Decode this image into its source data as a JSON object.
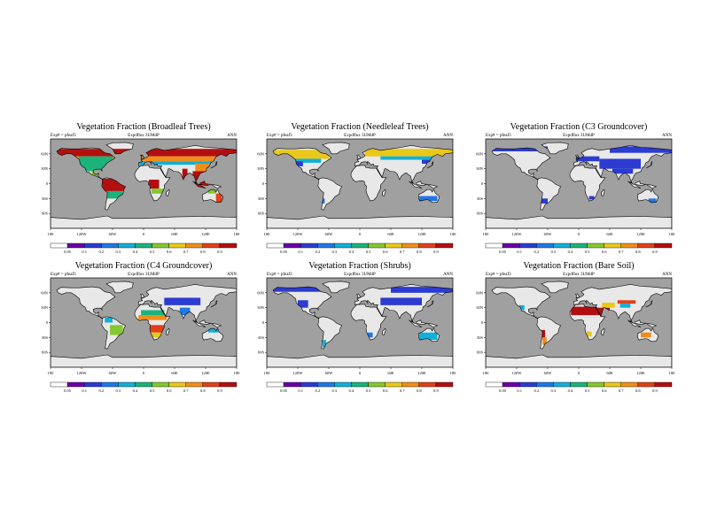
{
  "chart_data": [
    {
      "type": "heatmap",
      "title": "Vegetation Fraction (Broadleaf Trees)",
      "left_label": "Exp# = pfeaf3",
      "center_label": "Expdflux 3UMdP",
      "right_label": "ANN",
      "lon_ticks": [
        "180",
        "120W",
        "60W",
        "0",
        "60E",
        "120E",
        "180"
      ],
      "lat_ticks": [
        "60N",
        "30N",
        "0",
        "30S",
        "60S"
      ],
      "colorbar_ticks": [
        "0.05",
        "0.1",
        "0.2",
        "0.3",
        "0.4",
        "0.5",
        "0.6",
        "0.7",
        "0.8",
        "0.9"
      ],
      "regions": [
        {
          "lon": [
            -180,
            180
          ],
          "lat": [
            55,
            70
          ],
          "value": 0.9
        },
        {
          "lon": [
            -180,
            180
          ],
          "lat": [
            45,
            55
          ],
          "value": 0.7
        },
        {
          "lon": [
            -180,
            180
          ],
          "lat": [
            38,
            45
          ],
          "value": 0.3
        },
        {
          "lon": [
            -125,
            -60
          ],
          "lat": [
            25,
            55
          ],
          "value": 0.45
        },
        {
          "lon": [
            -100,
            -75
          ],
          "lat": [
            15,
            25
          ],
          "value": 0.5
        },
        {
          "lon": [
            -80,
            -35
          ],
          "lat": [
            -15,
            10
          ],
          "value": 0.9
        },
        {
          "lon": [
            -75,
            -40
          ],
          "lat": [
            -30,
            -15
          ],
          "value": 0.45
        },
        {
          "lon": [
            10,
            30
          ],
          "lat": [
            -10,
            8
          ],
          "value": 0.9
        },
        {
          "lon": [
            15,
            40
          ],
          "lat": [
            -20,
            -10
          ],
          "value": 0.5
        },
        {
          "lon": [
            75,
            85
          ],
          "lat": [
            10,
            30
          ],
          "value": 0.95
        },
        {
          "lon": [
            95,
            125
          ],
          "lat": [
            -10,
            25
          ],
          "value": 0.9
        },
        {
          "lon": [
            100,
            140
          ],
          "lat": [
            25,
            40
          ],
          "value": 0.75
        },
        {
          "lon": [
            140,
            152
          ],
          "lat": [
            -40,
            -20
          ],
          "value": 0.8
        },
        {
          "lon": [
            125,
            140
          ],
          "lat": [
            -20,
            -12
          ],
          "value": 0.5
        }
      ]
    },
    {
      "type": "heatmap",
      "title": "Vegetation Fraction (Needleleaf Trees)",
      "left_label": "Exp# = pfeaf3",
      "center_label": "Expdflux 3UMdP",
      "right_label": "ANN",
      "lon_ticks": [
        "180",
        "120W",
        "60W",
        "0",
        "60E",
        "120E",
        "180"
      ],
      "lat_ticks": [
        "60N",
        "30N",
        "0",
        "30S",
        "60S"
      ],
      "colorbar_ticks": [
        "0.05",
        "0.1",
        "0.2",
        "0.3",
        "0.4",
        "0.5",
        "0.6",
        "0.7",
        "0.8",
        "0.9"
      ],
      "regions": [
        {
          "lon": [
            -170,
            -60
          ],
          "lat": [
            50,
            68
          ],
          "value": 0.6
        },
        {
          "lon": [
            -150,
            -75
          ],
          "lat": [
            42,
            50
          ],
          "value": 0.35
        },
        {
          "lon": [
            10,
            180
          ],
          "lat": [
            55,
            70
          ],
          "value": 0.65
        },
        {
          "lon": [
            40,
            150
          ],
          "lat": [
            48,
            55
          ],
          "value": 0.3
        },
        {
          "lon": [
            120,
            150
          ],
          "lat": [
            40,
            48
          ],
          "value": 0.15
        },
        {
          "lon": [
            -125,
            -110
          ],
          "lat": [
            35,
            45
          ],
          "value": 0.15
        },
        {
          "lon": [
            115,
            150
          ],
          "lat": [
            -35,
            -25
          ],
          "value": 0.25
        },
        {
          "lon": [
            -75,
            -68
          ],
          "lat": [
            -40,
            -30
          ],
          "value": 0.2
        }
      ]
    },
    {
      "type": "heatmap",
      "title": "Vegetation Fraction (C3 Groundcover)",
      "left_label": "Exp# = pfeaf3",
      "center_label": "Expdflux 3UMdP",
      "right_label": "ANN",
      "lon_ticks": [
        "180",
        "120W",
        "60W",
        "0",
        "60E",
        "120E",
        "180"
      ],
      "lat_ticks": [
        "60N",
        "30N",
        "0",
        "30S",
        "60S"
      ],
      "colorbar_ticks": [
        "0.05",
        "0.1",
        "0.2",
        "0.3",
        "0.4",
        "0.5",
        "0.6",
        "0.7",
        "0.8",
        "0.9"
      ],
      "regions": [
        {
          "lon": [
            -180,
            -60
          ],
          "lat": [
            65,
            75
          ],
          "value": 0.1
        },
        {
          "lon": [
            60,
            180
          ],
          "lat": [
            62,
            75
          ],
          "value": 0.1
        },
        {
          "lon": [
            -5,
            40
          ],
          "lat": [
            45,
            55
          ],
          "value": 0.1
        },
        {
          "lon": [
            40,
            120
          ],
          "lat": [
            30,
            50
          ],
          "value": 0.15
        },
        {
          "lon": [
            65,
            105
          ],
          "lat": [
            20,
            30
          ],
          "value": 0.1
        },
        {
          "lon": [
            -75,
            -60
          ],
          "lat": [
            -40,
            -30
          ],
          "value": 0.15
        },
        {
          "lon": [
            135,
            150
          ],
          "lat": [
            -40,
            -30
          ],
          "value": 0.2
        },
        {
          "lon": [
            20,
            30
          ],
          "lat": [
            -32,
            -25
          ],
          "value": 0.15
        }
      ]
    },
    {
      "type": "heatmap",
      "title": "Vegetation Fraction (C4 Groundcover)",
      "left_label": "Exp# = pfeaf3",
      "center_label": "Expdflux 3UMdP",
      "right_label": "ANN",
      "lon_ticks": [
        "180",
        "120W",
        "60W",
        "0",
        "60E",
        "120E",
        "180"
      ],
      "lat_ticks": [
        "60N",
        "30N",
        "0",
        "30S",
        "60S"
      ],
      "colorbar_ticks": [
        "0.05",
        "0.1",
        "0.2",
        "0.3",
        "0.4",
        "0.5",
        "0.6",
        "0.7",
        "0.8",
        "0.9"
      ],
      "regions": [
        {
          "lon": [
            -10,
            45
          ],
          "lat": [
            5,
            15
          ],
          "value": 0.75
        },
        {
          "lon": [
            -5,
            40
          ],
          "lat": [
            15,
            25
          ],
          "value": 0.4
        },
        {
          "lon": [
            10,
            40
          ],
          "lat": [
            -20,
            -5
          ],
          "value": 0.85
        },
        {
          "lon": [
            15,
            35
          ],
          "lat": [
            -30,
            -20
          ],
          "value": 0.6
        },
        {
          "lon": [
            -65,
            -40
          ],
          "lat": [
            -25,
            -5
          ],
          "value": 0.5
        },
        {
          "lon": [
            -75,
            -60
          ],
          "lat": [
            0,
            10
          ],
          "value": 0.3
        },
        {
          "lon": [
            70,
            90
          ],
          "lat": [
            15,
            30
          ],
          "value": 0.2
        },
        {
          "lon": [
            125,
            145
          ],
          "lat": [
            -20,
            -12
          ],
          "value": 0.3
        },
        {
          "lon": [
            40,
            110
          ],
          "lat": [
            35,
            50
          ],
          "value": 0.1
        }
      ]
    },
    {
      "type": "heatmap",
      "title": "Vegetation Fraction (Shrubs)",
      "left_label": "Exp# = pfeaf3",
      "center_label": "Expdflux 3UMdP",
      "right_label": "ANN",
      "lon_ticks": [
        "180",
        "120W",
        "60W",
        "0",
        "60E",
        "120E",
        "180"
      ],
      "lat_ticks": [
        "60N",
        "30N",
        "0",
        "30S",
        "60S"
      ],
      "colorbar_ticks": [
        "0.05",
        "0.1",
        "0.2",
        "0.3",
        "0.4",
        "0.5",
        "0.6",
        "0.7",
        "0.8",
        "0.9"
      ],
      "regions": [
        {
          "lon": [
            -170,
            -60
          ],
          "lat": [
            62,
            72
          ],
          "value": 0.1
        },
        {
          "lon": [
            60,
            180
          ],
          "lat": [
            60,
            72
          ],
          "value": 0.1
        },
        {
          "lon": [
            40,
            120
          ],
          "lat": [
            35,
            50
          ],
          "value": 0.15
        },
        {
          "lon": [
            -120,
            -100
          ],
          "lat": [
            30,
            45
          ],
          "value": 0.15
        },
        {
          "lon": [
            115,
            150
          ],
          "lat": [
            -35,
            -20
          ],
          "value": 0.35
        },
        {
          "lon": [
            -72,
            -65
          ],
          "lat": [
            -50,
            -35
          ],
          "value": 0.3
        },
        {
          "lon": [
            15,
            25
          ],
          "lat": [
            -30,
            -20
          ],
          "value": 0.2
        }
      ]
    },
    {
      "type": "heatmap",
      "title": "Vegetation Fraction (Bare Soil)",
      "left_label": "Exp# = pfeaf3",
      "center_label": "Expdflux 3UMdP",
      "right_label": "ANN",
      "lon_ticks": [
        "180",
        "120W",
        "60W",
        "0",
        "60E",
        "120E",
        "180"
      ],
      "lat_ticks": [
        "60N",
        "30N",
        "0",
        "30S",
        "60S"
      ],
      "colorbar_ticks": [
        "0.05",
        "0.1",
        "0.2",
        "0.3",
        "0.4",
        "0.5",
        "0.6",
        "0.7",
        "0.8",
        "0.9"
      ],
      "regions": [
        {
          "lon": [
            -15,
            35
          ],
          "lat": [
            15,
            32
          ],
          "value": 0.95
        },
        {
          "lon": [
            35,
            60
          ],
          "lat": [
            15,
            30
          ],
          "value": 0.9
        },
        {
          "lon": [
            45,
            70
          ],
          "lat": [
            30,
            40
          ],
          "value": 0.6
        },
        {
          "lon": [
            75,
            110
          ],
          "lat": [
            38,
            45
          ],
          "value": 0.85
        },
        {
          "lon": [
            80,
            100
          ],
          "lat": [
            30,
            38
          ],
          "value": 0.3
        },
        {
          "lon": [
            -75,
            -65
          ],
          "lat": [
            -30,
            -15
          ],
          "value": 0.9
        },
        {
          "lon": [
            -70,
            -62
          ],
          "lat": [
            -45,
            -30
          ],
          "value": 0.7
        },
        {
          "lon": [
            15,
            25
          ],
          "lat": [
            -28,
            -18
          ],
          "value": 0.6
        },
        {
          "lon": [
            120,
            140
          ],
          "lat": [
            -30,
            -20
          ],
          "value": 0.75
        },
        {
          "lon": [
            -115,
            -105
          ],
          "lat": [
            25,
            35
          ],
          "value": 0.3
        }
      ]
    }
  ],
  "colors": {
    "ocean": "#a0a0a0",
    "land": "#e8e8e8",
    "coast": "#000000",
    "palette": [
      "#ffffff",
      "#6a00a8",
      "#2c3bd1",
      "#1e78e6",
      "#12b0d8",
      "#1bb37a",
      "#84c82f",
      "#e9c819",
      "#ef8e1a",
      "#e0401a",
      "#b30f10"
    ]
  }
}
